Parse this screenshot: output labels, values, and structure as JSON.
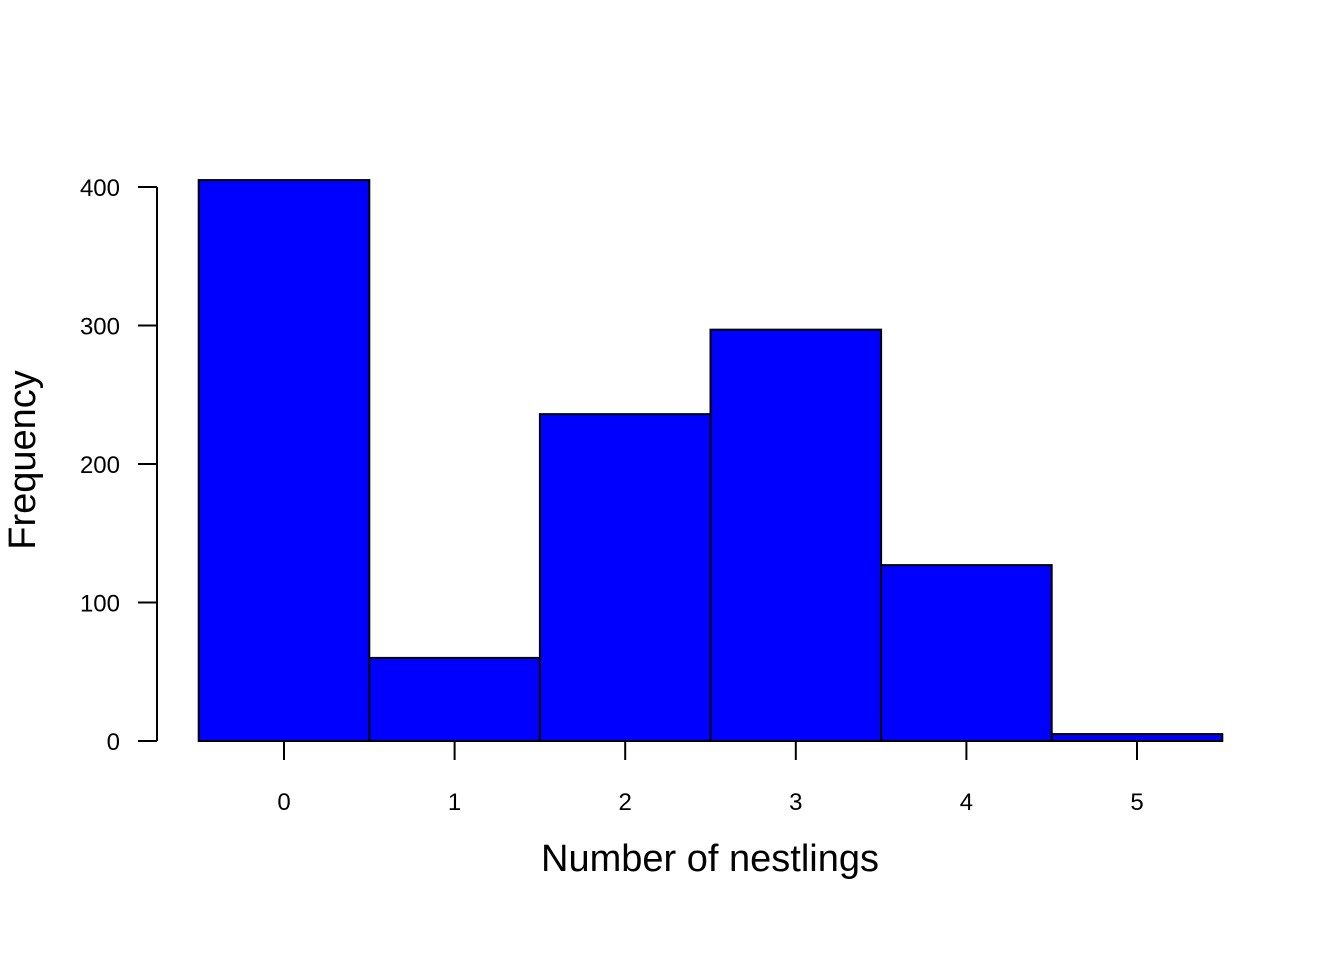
{
  "chart_data": {
    "type": "bar",
    "title": "",
    "xlabel": "Number of nestlings",
    "ylabel": "Frequency",
    "categories": [
      "0",
      "1",
      "2",
      "3",
      "4",
      "5"
    ],
    "values": [
      405,
      60,
      236,
      297,
      127,
      5
    ],
    "ylim": [
      0,
      400
    ],
    "yticks": [
      "0",
      "100",
      "200",
      "300",
      "400"
    ],
    "bar_color": "#0000ff",
    "grid": false,
    "legend": "none"
  }
}
